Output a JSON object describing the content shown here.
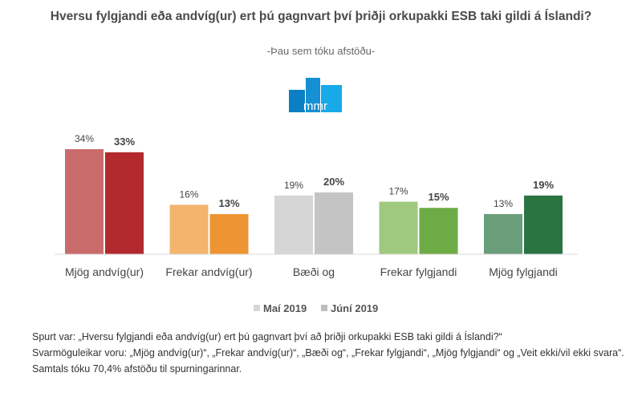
{
  "chart_data": {
    "type": "bar",
    "title": "Hversu fylgjandi eða andvíg(ur) ert þú gagnvart því þriðji orkupakki ESB taki gildi á Íslandi?",
    "subtitle": "-Þau sem tóku afstöðu-",
    "categories": [
      "Mjög andvíg(ur)",
      "Frekar andvíg(ur)",
      "Bæði og",
      "Frekar fylgjandi",
      "Mjög fylgjandi"
    ],
    "series": [
      {
        "name": "Maí 2019",
        "values": [
          34,
          16,
          19,
          17,
          13
        ],
        "labels": [
          "34%",
          "16%",
          "19%",
          "17%",
          "13%"
        ],
        "colors": [
          "#c96b6b",
          "#f3b46e",
          "#d6d6d6",
          "#9ec97f",
          "#6a9e7a"
        ],
        "legend_color": "#d6d6d6"
      },
      {
        "name": "Júní 2019",
        "values": [
          33,
          13,
          20,
          15,
          19
        ],
        "labels": [
          "33%",
          "13%",
          "20%",
          "15%",
          "19%"
        ],
        "colors": [
          "#b22a2e",
          "#ee9433",
          "#c4c4c4",
          "#6dab45",
          "#2a7442"
        ],
        "legend_color": "#bdbdbd"
      }
    ],
    "ylim": [
      0,
      36
    ],
    "grid": false,
    "legend": "bottom"
  },
  "logo": {
    "text": "mmr",
    "color": "#1b9ad6"
  },
  "footnotes": [
    "Spurt var: „Hversu fylgjandi eða andvíg(ur) ert þú gagnvart því að þriðji orkupakki ESB taki gildi á Íslandi?“",
    "Svarmöguleikar voru: „Mjög andvíg(ur)“, „Frekar andvíg(ur)“, „Bæði og“, „Frekar fylgjandi“, „Mjög fylgjandi“ og „Veit ekki/vil ekki svara“.",
    "Samtals tóku 70,4% afstöðu til spurningarinnar."
  ]
}
